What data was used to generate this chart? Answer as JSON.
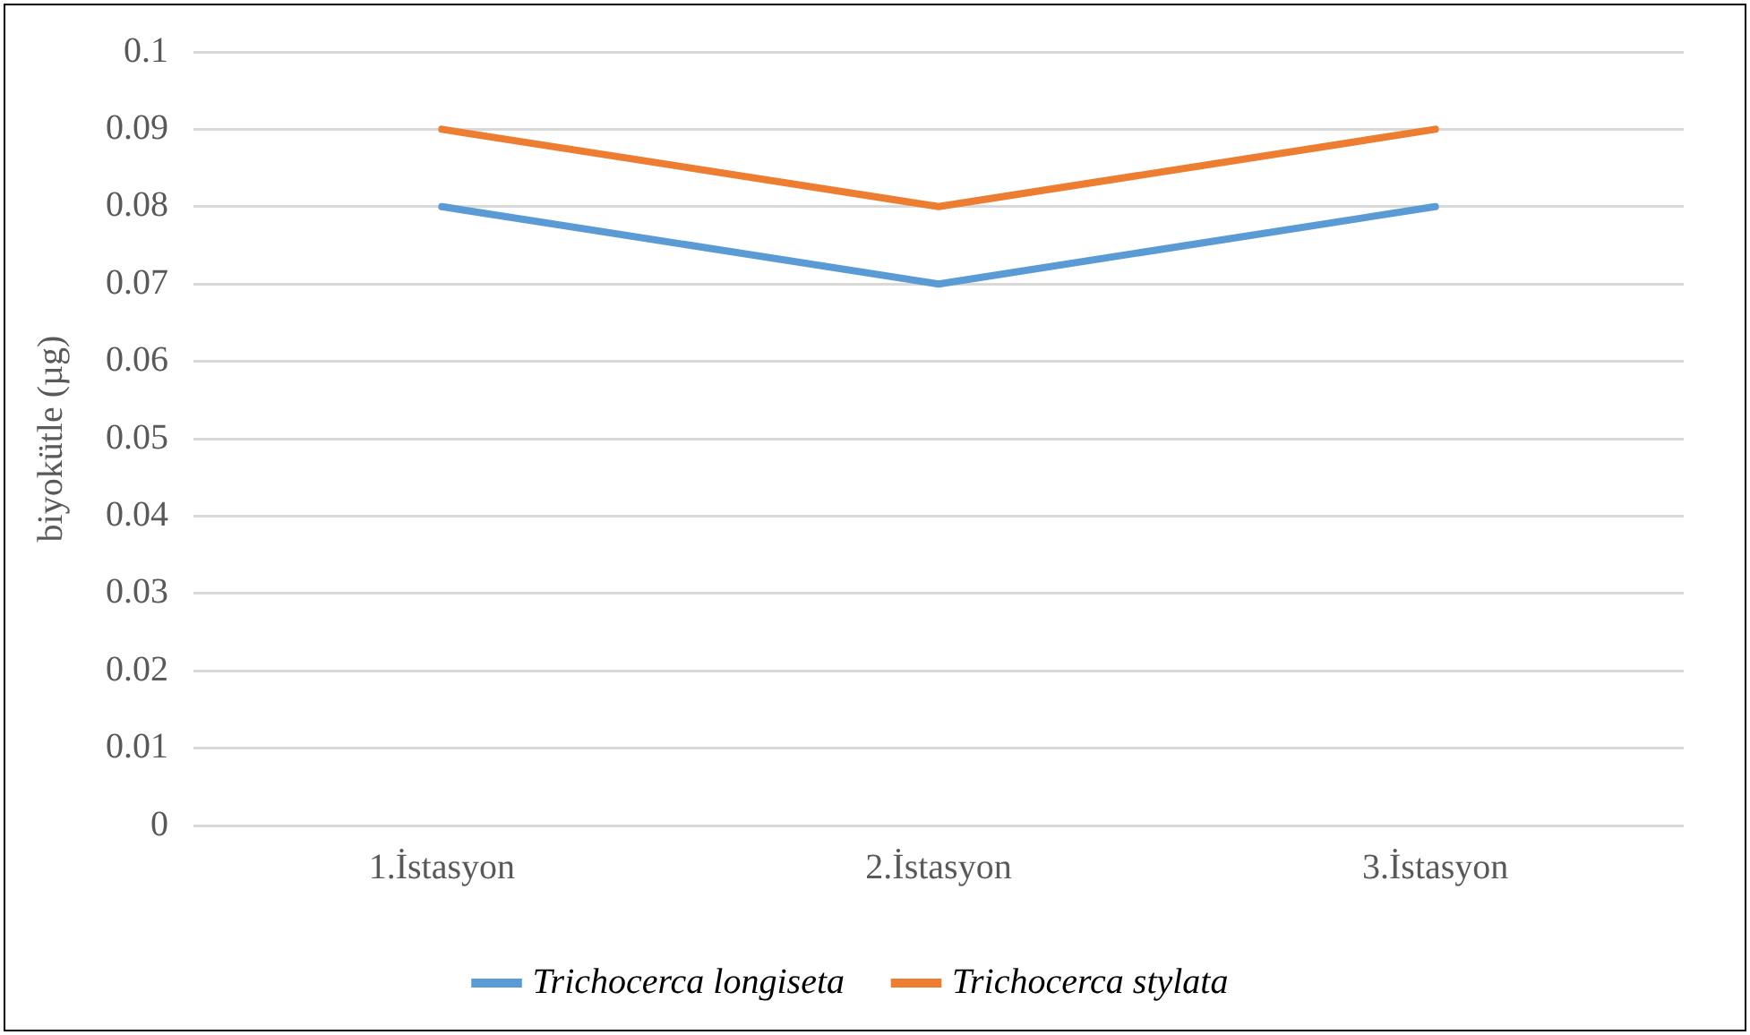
{
  "chart_data": {
    "type": "line",
    "ylabel": "biyokütle (µg)",
    "categories": [
      "1.İstasyon",
      "2.İstasyon",
      "3.İstasyon"
    ],
    "series": [
      {
        "name": "Trichocerca longiseta",
        "color": "#5b9bd5",
        "values": [
          0.08,
          0.07,
          0.08
        ]
      },
      {
        "name": "Trichocerca stylata",
        "color": "#ed7d31",
        "values": [
          0.09,
          0.08,
          0.09
        ]
      }
    ],
    "ylim": [
      0,
      0.1
    ],
    "yticks": [
      0,
      0.01,
      0.02,
      0.03,
      0.04,
      0.05,
      0.06,
      0.07,
      0.08,
      0.09,
      0.1
    ],
    "grid": "y",
    "legend": "bottom",
    "marker": "none",
    "line_style": "solid"
  }
}
